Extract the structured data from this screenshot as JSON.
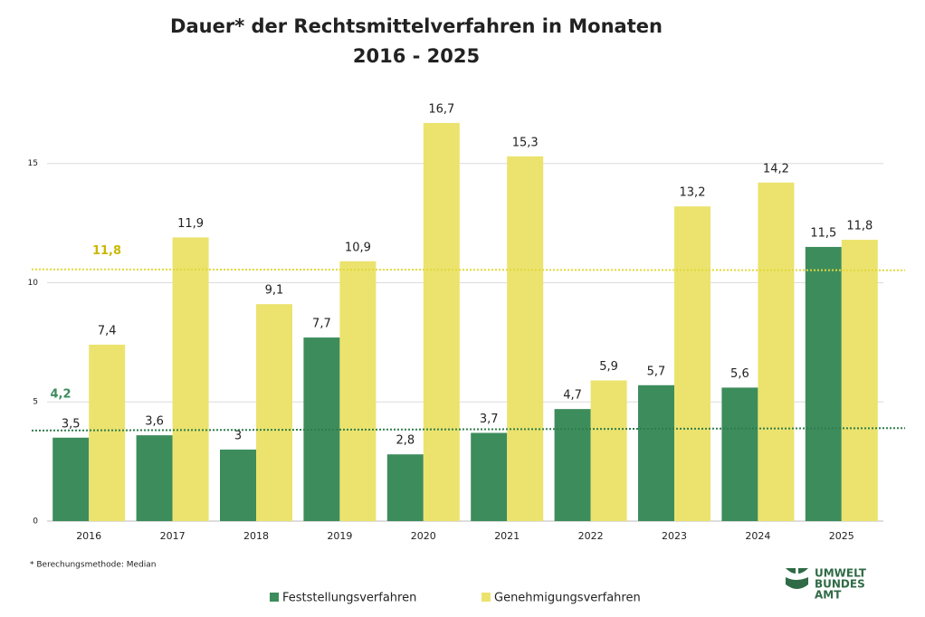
{
  "chart_data": {
    "type": "bar",
    "title": "Dauer* der Rechtsmittelverfahren in Monaten",
    "subtitle": "2016 - 2025",
    "categories": [
      "2016",
      "2017",
      "2018",
      "2019",
      "2020",
      "2021",
      "2022",
      "2023",
      "2024",
      "2025"
    ],
    "series": [
      {
        "name": "Feststellungsverfahren",
        "color": "#3d8c5c",
        "values": [
          3.5,
          3.6,
          3,
          7.7,
          2.8,
          3.7,
          4.7,
          5.7,
          5.6,
          11.5
        ],
        "value_labels": [
          "3,5",
          "3,6",
          "3",
          "7,7",
          "2,8",
          "3,7",
          "4,7",
          "5,7",
          "5,6",
          "11,5"
        ]
      },
      {
        "name": "Genehmigungsverfahren",
        "color": "#ebe36e",
        "values": [
          7.4,
          11.9,
          9.1,
          10.9,
          16.7,
          15.3,
          5.9,
          13.2,
          14.2,
          11.8
        ],
        "value_labels": [
          "7,4",
          "11,9",
          "9,1",
          "10,9",
          "16,7",
          "15,3",
          "5,9",
          "13,2",
          "14,2",
          "11,8"
        ]
      }
    ],
    "median_lines": [
      {
        "label": "11,8",
        "color": "#e2d83a",
        "label_color": "#c9b800",
        "start": 10.56,
        "end": 10.52
      },
      {
        "label": "4,2",
        "color": "#2f7d4c",
        "label_color": "#3d8c5c",
        "start": 3.8,
        "end": 3.9
      }
    ],
    "ylim": [
      0,
      17
    ],
    "yticks": [
      0,
      5,
      10,
      15
    ],
    "grid": true,
    "footnote": "* Berechungsmethode: Median",
    "logo": [
      "UMWELT",
      "BUNDES",
      "AMT"
    ]
  }
}
